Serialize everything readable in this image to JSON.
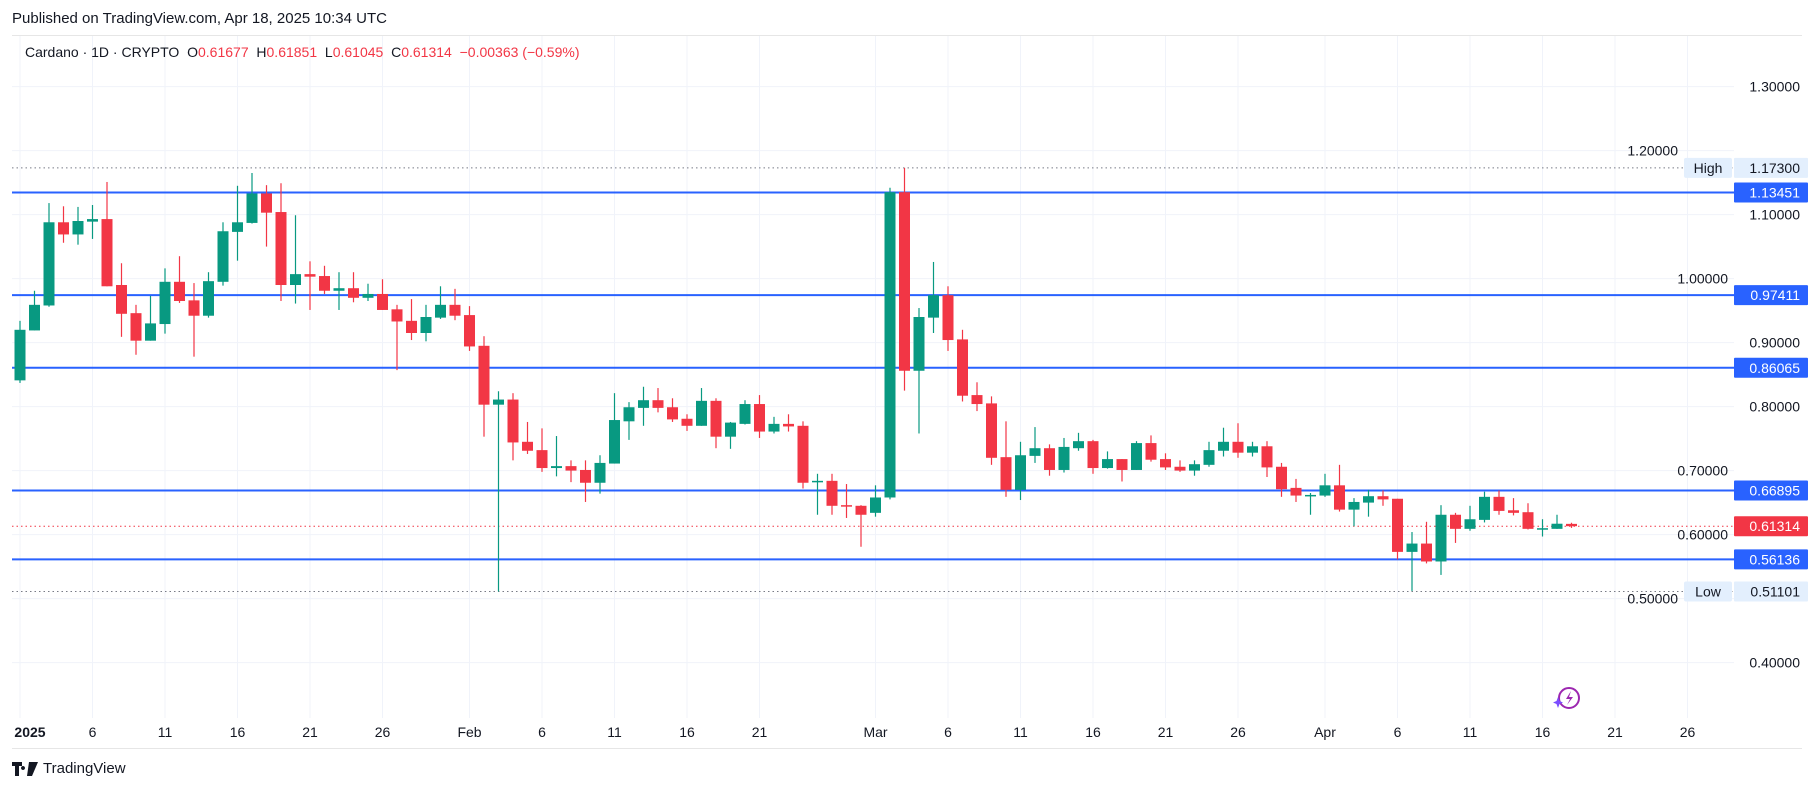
{
  "header": {
    "published": "Published on TradingView.com, Apr 18, 2025 10:34 UTC"
  },
  "legend": {
    "symbol": "Cardano · 1D · CRYPTO",
    "o_label": "O",
    "o": "0.61677",
    "h_label": "H",
    "h": "0.61851",
    "l_label": "L",
    "l": "0.61045",
    "c_label": "C",
    "c": "0.61314",
    "change": "−0.00363 (−0.59%)"
  },
  "footer": {
    "brand": "TradingView"
  },
  "colors": {
    "up": "#089981",
    "down": "#f23645",
    "level_line": "#2962ff",
    "grid": "#f0f3fa",
    "high_low_box": "#e3effd"
  },
  "icons": {
    "logo": "tradingview-logo-icon",
    "flash": "lightning-sparkle-icon"
  },
  "chart_data": {
    "type": "candlestick",
    "symbol": "Cardano",
    "interval": "1D",
    "ylim": [
      0.35,
      1.37
    ],
    "y_ticks": [
      "1.30000",
      "1.20000",
      "1.10000",
      "1.00000",
      "0.90000",
      "0.80000",
      "0.70000",
      "0.60000",
      "0.50000",
      "0.40000"
    ],
    "x_ticks": [
      [
        "2025-01-01",
        "2025"
      ],
      [
        "2025-01-06",
        "6"
      ],
      [
        "2025-01-11",
        "11"
      ],
      [
        "2025-01-16",
        "16"
      ],
      [
        "2025-01-21",
        "21"
      ],
      [
        "2025-01-26",
        "26"
      ],
      [
        "2025-02-01",
        "Feb"
      ],
      [
        "2025-02-06",
        "6"
      ],
      [
        "2025-02-11",
        "11"
      ],
      [
        "2025-02-16",
        "16"
      ],
      [
        "2025-02-21",
        "21"
      ],
      [
        "2025-03-01",
        "Mar"
      ],
      [
        "2025-03-06",
        "6"
      ],
      [
        "2025-03-11",
        "11"
      ],
      [
        "2025-03-16",
        "16"
      ],
      [
        "2025-03-21",
        "21"
      ],
      [
        "2025-03-26",
        "26"
      ],
      [
        "2025-04-01",
        "Apr"
      ],
      [
        "2025-04-06",
        "6"
      ],
      [
        "2025-04-11",
        "11"
      ],
      [
        "2025-04-16",
        "16"
      ],
      [
        "2025-04-21",
        "21"
      ],
      [
        "2025-04-26",
        "26"
      ]
    ],
    "grid": true,
    "horizontal_levels": [
      "1.13451",
      "0.97411",
      "0.86065",
      "0.66895",
      "0.56136"
    ],
    "high": {
      "label": "High",
      "value": "1.17300"
    },
    "low": {
      "label": "Low",
      "value": "0.51101"
    },
    "last_price": "0.61314",
    "candles_columns": [
      "date",
      "open",
      "high",
      "low",
      "close"
    ],
    "candles": [
      [
        "2025-01-01",
        0.841,
        0.934,
        0.837,
        0.92
      ],
      [
        "2025-01-02",
        0.919,
        0.981,
        0.919,
        0.959
      ],
      [
        "2025-01-03",
        0.958,
        1.118,
        0.956,
        1.088
      ],
      [
        "2025-01-04",
        1.088,
        1.113,
        1.056,
        1.069
      ],
      [
        "2025-01-05",
        1.069,
        1.112,
        1.053,
        1.09
      ],
      [
        "2025-01-06",
        1.089,
        1.115,
        1.062,
        1.093
      ],
      [
        "2025-01-07",
        1.093,
        1.151,
        0.988,
        0.988
      ],
      [
        "2025-01-08",
        0.99,
        1.024,
        0.909,
        0.945
      ],
      [
        "2025-01-09",
        0.946,
        0.959,
        0.881,
        0.903
      ],
      [
        "2025-01-10",
        0.903,
        0.973,
        0.903,
        0.93
      ],
      [
        "2025-01-11",
        0.929,
        1.016,
        0.914,
        0.995
      ],
      [
        "2025-01-12",
        0.995,
        1.035,
        0.962,
        0.965
      ],
      [
        "2025-01-13",
        0.966,
        0.993,
        0.878,
        0.942
      ],
      [
        "2025-01-14",
        0.942,
        1.01,
        0.939,
        0.996
      ],
      [
        "2025-01-15",
        0.995,
        1.088,
        0.989,
        1.074
      ],
      [
        "2025-01-16",
        1.073,
        1.145,
        1.028,
        1.088
      ],
      [
        "2025-01-17",
        1.087,
        1.165,
        1.086,
        1.133
      ],
      [
        "2025-01-18",
        1.133,
        1.146,
        1.05,
        1.103
      ],
      [
        "2025-01-19",
        1.104,
        1.149,
        0.965,
        0.99
      ],
      [
        "2025-01-20",
        0.99,
        1.099,
        0.961,
        1.007
      ],
      [
        "2025-01-21",
        1.007,
        1.027,
        0.951,
        1.003
      ],
      [
        "2025-01-22",
        1.004,
        1.02,
        0.976,
        0.981
      ],
      [
        "2025-01-23",
        0.981,
        1.01,
        0.951,
        0.985
      ],
      [
        "2025-01-24",
        0.985,
        1.01,
        0.963,
        0.97
      ],
      [
        "2025-01-25",
        0.97,
        0.992,
        0.965,
        0.976
      ],
      [
        "2025-01-26",
        0.976,
        0.999,
        0.951,
        0.951
      ],
      [
        "2025-01-27",
        0.952,
        0.959,
        0.857,
        0.933
      ],
      [
        "2025-01-28",
        0.934,
        0.968,
        0.904,
        0.915
      ],
      [
        "2025-01-29",
        0.915,
        0.959,
        0.902,
        0.94
      ],
      [
        "2025-01-30",
        0.939,
        0.988,
        0.937,
        0.959
      ],
      [
        "2025-01-31",
        0.959,
        0.984,
        0.935,
        0.942
      ],
      [
        "2025-02-01",
        0.943,
        0.957,
        0.887,
        0.894
      ],
      [
        "2025-02-02",
        0.895,
        0.91,
        0.753,
        0.803
      ],
      [
        "2025-02-03",
        0.803,
        0.824,
        0.511,
        0.811
      ],
      [
        "2025-02-04",
        0.811,
        0.821,
        0.716,
        0.744
      ],
      [
        "2025-02-05",
        0.745,
        0.776,
        0.726,
        0.731
      ],
      [
        "2025-02-06",
        0.732,
        0.766,
        0.698,
        0.704
      ],
      [
        "2025-02-07",
        0.704,
        0.754,
        0.691,
        0.707
      ],
      [
        "2025-02-08",
        0.707,
        0.716,
        0.682,
        0.7
      ],
      [
        "2025-02-09",
        0.701,
        0.716,
        0.651,
        0.681
      ],
      [
        "2025-02-10",
        0.681,
        0.724,
        0.664,
        0.712
      ],
      [
        "2025-02-11",
        0.711,
        0.821,
        0.711,
        0.779
      ],
      [
        "2025-02-12",
        0.777,
        0.807,
        0.748,
        0.799
      ],
      [
        "2025-02-13",
        0.798,
        0.831,
        0.77,
        0.81
      ],
      [
        "2025-02-14",
        0.81,
        0.829,
        0.791,
        0.798
      ],
      [
        "2025-02-15",
        0.799,
        0.813,
        0.776,
        0.78
      ],
      [
        "2025-02-16",
        0.781,
        0.788,
        0.762,
        0.77
      ],
      [
        "2025-02-17",
        0.77,
        0.829,
        0.77,
        0.809
      ],
      [
        "2025-02-18",
        0.809,
        0.813,
        0.735,
        0.753
      ],
      [
        "2025-02-19",
        0.753,
        0.776,
        0.734,
        0.775
      ],
      [
        "2025-02-20",
        0.773,
        0.81,
        0.772,
        0.804
      ],
      [
        "2025-02-21",
        0.804,
        0.818,
        0.751,
        0.761
      ],
      [
        "2025-02-22",
        0.761,
        0.784,
        0.758,
        0.773
      ],
      [
        "2025-02-23",
        0.773,
        0.788,
        0.761,
        0.769
      ],
      [
        "2025-02-24",
        0.77,
        0.777,
        0.672,
        0.681
      ],
      [
        "2025-02-25",
        0.683,
        0.695,
        0.631,
        0.684
      ],
      [
        "2025-02-26",
        0.684,
        0.695,
        0.631,
        0.645
      ],
      [
        "2025-02-27",
        0.646,
        0.679,
        0.626,
        0.644
      ],
      [
        "2025-02-28",
        0.645,
        0.646,
        0.581,
        0.631
      ],
      [
        "2025-03-01",
        0.634,
        0.677,
        0.628,
        0.658
      ],
      [
        "2025-03-02",
        0.658,
        1.142,
        0.655,
        1.135
      ],
      [
        "2025-03-03",
        1.135,
        1.173,
        0.825,
        0.856
      ],
      [
        "2025-03-04",
        0.856,
        0.954,
        0.758,
        0.94
      ],
      [
        "2025-03-05",
        0.939,
        1.026,
        0.915,
        0.974
      ],
      [
        "2025-03-06",
        0.974,
        0.988,
        0.887,
        0.904
      ],
      [
        "2025-03-07",
        0.905,
        0.92,
        0.808,
        0.817
      ],
      [
        "2025-03-08",
        0.818,
        0.838,
        0.793,
        0.804
      ],
      [
        "2025-03-09",
        0.805,
        0.816,
        0.709,
        0.72
      ],
      [
        "2025-03-10",
        0.721,
        0.777,
        0.659,
        0.67
      ],
      [
        "2025-03-11",
        0.67,
        0.745,
        0.654,
        0.724
      ],
      [
        "2025-03-12",
        0.723,
        0.768,
        0.712,
        0.735
      ],
      [
        "2025-03-13",
        0.735,
        0.741,
        0.692,
        0.701
      ],
      [
        "2025-03-14",
        0.701,
        0.751,
        0.697,
        0.737
      ],
      [
        "2025-03-15",
        0.735,
        0.759,
        0.731,
        0.746
      ],
      [
        "2025-03-16",
        0.746,
        0.748,
        0.695,
        0.704
      ],
      [
        "2025-03-17",
        0.704,
        0.73,
        0.703,
        0.718
      ],
      [
        "2025-03-18",
        0.718,
        0.718,
        0.683,
        0.701
      ],
      [
        "2025-03-19",
        0.701,
        0.746,
        0.701,
        0.743
      ],
      [
        "2025-03-20",
        0.743,
        0.755,
        0.714,
        0.717
      ],
      [
        "2025-03-21",
        0.718,
        0.727,
        0.701,
        0.705
      ],
      [
        "2025-03-22",
        0.706,
        0.716,
        0.698,
        0.7
      ],
      [
        "2025-03-23",
        0.7,
        0.716,
        0.692,
        0.71
      ],
      [
        "2025-03-24",
        0.709,
        0.745,
        0.706,
        0.732
      ],
      [
        "2025-03-25",
        0.731,
        0.767,
        0.722,
        0.745
      ],
      [
        "2025-03-26",
        0.745,
        0.774,
        0.72,
        0.728
      ],
      [
        "2025-03-27",
        0.728,
        0.745,
        0.722,
        0.738
      ],
      [
        "2025-03-28",
        0.738,
        0.746,
        0.69,
        0.705
      ],
      [
        "2025-03-29",
        0.706,
        0.712,
        0.659,
        0.671
      ],
      [
        "2025-03-30",
        0.673,
        0.687,
        0.651,
        0.661
      ],
      [
        "2025-03-31",
        0.661,
        0.665,
        0.631,
        0.662
      ],
      [
        "2025-04-01",
        0.661,
        0.695,
        0.659,
        0.677
      ],
      [
        "2025-04-02",
        0.677,
        0.709,
        0.636,
        0.639
      ],
      [
        "2025-04-03",
        0.639,
        0.657,
        0.613,
        0.651
      ],
      [
        "2025-04-04",
        0.65,
        0.67,
        0.628,
        0.66
      ],
      [
        "2025-04-05",
        0.66,
        0.669,
        0.645,
        0.655
      ],
      [
        "2025-04-06",
        0.656,
        0.656,
        0.561,
        0.573
      ],
      [
        "2025-04-07",
        0.573,
        0.604,
        0.512,
        0.586
      ],
      [
        "2025-04-08",
        0.586,
        0.62,
        0.555,
        0.558
      ],
      [
        "2025-04-09",
        0.558,
        0.646,
        0.537,
        0.631
      ],
      [
        "2025-04-10",
        0.631,
        0.634,
        0.587,
        0.609
      ],
      [
        "2025-04-11",
        0.609,
        0.645,
        0.606,
        0.624
      ],
      [
        "2025-04-12",
        0.623,
        0.667,
        0.619,
        0.659
      ],
      [
        "2025-04-13",
        0.659,
        0.669,
        0.631,
        0.637
      ],
      [
        "2025-04-14",
        0.638,
        0.657,
        0.63,
        0.634
      ],
      [
        "2025-04-15",
        0.635,
        0.649,
        0.608,
        0.609
      ],
      [
        "2025-04-16",
        0.609,
        0.624,
        0.597,
        0.61
      ],
      [
        "2025-04-17",
        0.609,
        0.631,
        0.609,
        0.617
      ],
      [
        "2025-04-18",
        0.61677,
        0.61851,
        0.61045,
        0.61314
      ]
    ]
  }
}
